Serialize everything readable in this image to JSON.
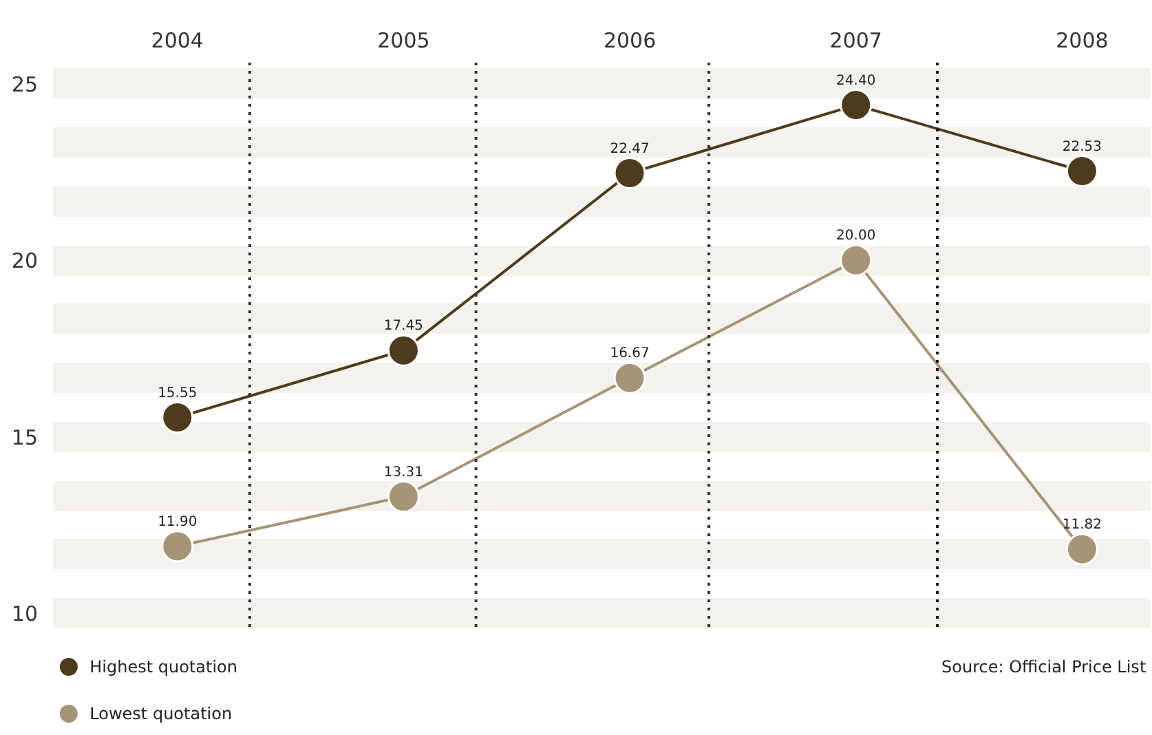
{
  "chart_data": {
    "type": "line",
    "x": [
      2004,
      2005,
      2006,
      2007,
      2008
    ],
    "series": [
      {
        "name": "Highest quotation",
        "color": "#4e3b1c",
        "values": [
          15.55,
          17.45,
          22.47,
          24.4,
          22.53
        ],
        "value_labels": [
          "15.55",
          "17.45",
          "22.47",
          "24.40",
          "22.53"
        ]
      },
      {
        "name": "Lowest quotation",
        "color": "#a69476",
        "values": [
          11.9,
          13.31,
          16.67,
          20.0,
          11.82
        ],
        "value_labels": [
          "11.90",
          "13.31",
          "16.67",
          "20.00",
          "11.82"
        ]
      }
    ],
    "xlim": [
      2003.45,
      2008.3
    ],
    "xticks": [
      2004,
      2005,
      2006,
      2007,
      2008
    ],
    "ylim": [
      9.5,
      25.6
    ],
    "yticks": [
      10,
      {
        "value": 11.667,
        "label": null
      },
      {
        "value": 13.333,
        "label": null
      },
      15,
      {
        "value": 16.667,
        "label": null
      },
      {
        "value": 18.333,
        "label": null
      },
      20,
      {
        "value": 21.667,
        "label": null
      },
      {
        "value": 23.333,
        "label": null
      },
      25
    ],
    "ref_lines": [
      {
        "axis": "x",
        "value": 2004.32,
        "color": "#333333",
        "line_style": "dotted"
      },
      {
        "axis": "x",
        "value": 2005.32,
        "color": "#333333",
        "line_style": "dotted"
      },
      {
        "axis": "x",
        "value": 2006.35,
        "color": "#333333",
        "line_style": "dotted"
      },
      {
        "axis": "x",
        "value": 2007.36,
        "color": "#111111",
        "line_style": "dotted"
      }
    ],
    "grid": "y",
    "marker": "circle",
    "line_style": "solid",
    "legend": "bottom left",
    "annotations": [
      "Source: Official Price List"
    ]
  }
}
